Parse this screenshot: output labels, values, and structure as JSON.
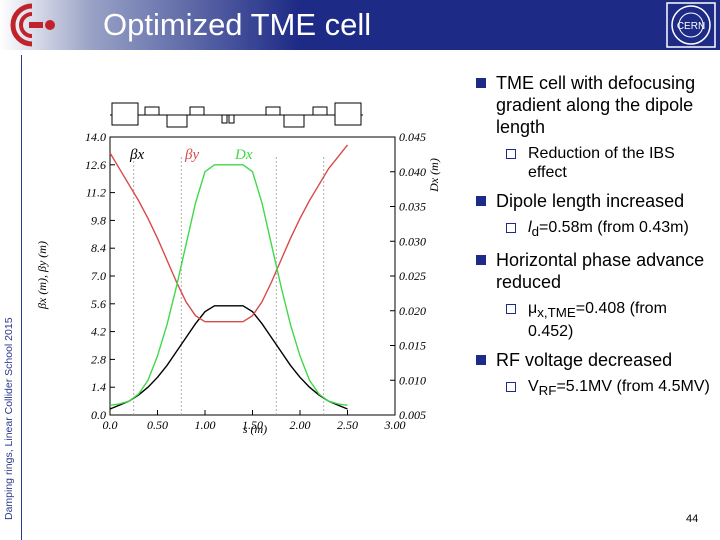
{
  "header": {
    "title": "Optimized TME cell"
  },
  "sidebar": {
    "text": "Damping rings, Linear Collider School 2015"
  },
  "bullets": {
    "b1_text": "TME cell with defocusing gradient along the dipole length",
    "b1_sub": "Reduction of the IBS effect",
    "b2_text": "Dipole length increased",
    "b2_sub_sym": "l",
    "b2_sub_subscript": "d",
    "b2_sub_rest": "=0.58m (from 0.43m)",
    "b3_text": "Horizontal phase advance reduced",
    "b3_sub_sym": "μ",
    "b3_sub_subscript": "x,TME",
    "b3_sub_rest": "=0.408 (from 0.452)",
    "b4_text": "RF voltage decreased",
    "b4_sub_sym": "V",
    "b4_sub_subscript": "RF",
    "b4_sub_rest": "=5.1MV (from 4.5MV)"
  },
  "page_number": "44",
  "chart_data": {
    "type": "line",
    "title": "",
    "xlabel": "s (m)",
    "ylabel_left": "βx (m), βy (m)",
    "ylabel_right": "Dx (m)",
    "xlim": [
      0,
      3.0
    ],
    "ylim_left": [
      0,
      14.0
    ],
    "ylim_right": [
      0.005,
      0.045
    ],
    "x_ticks": [
      "0.0",
      "0.50",
      "1.00",
      "1.50",
      "2.00",
      "2.50",
      "3.00"
    ],
    "x_tick_values": [
      0,
      0.5,
      1.0,
      1.5,
      2.0,
      2.5,
      3.0
    ],
    "y_left_ticks": [
      "0.0",
      "1.4",
      "2.8",
      "4.2",
      "5.6",
      "7.0",
      "8.4",
      "9.8",
      "11.2",
      "12.6",
      "14.0"
    ],
    "y_left_tick_values": [
      0,
      1.4,
      2.8,
      4.2,
      5.6,
      7.0,
      8.4,
      9.8,
      11.2,
      12.6,
      14.0
    ],
    "y_right_ticks": [
      "0.005",
      "0.010",
      "0.015",
      "0.020",
      "0.025",
      "0.030",
      "0.035",
      "0.040",
      "0.045"
    ],
    "y_right_tick_values": [
      0.005,
      0.01,
      0.015,
      0.02,
      0.025,
      0.03,
      0.035,
      0.04,
      0.045
    ],
    "legend": [
      "βx",
      "βy",
      "Dx"
    ],
    "colors": {
      "betax": "#000000",
      "betay": "#d94a4a",
      "dx": "#3fd94a"
    },
    "series": [
      {
        "name": "βx",
        "axis": "left",
        "x": [
          0,
          0.1,
          0.2,
          0.3,
          0.4,
          0.5,
          0.6,
          0.7,
          0.8,
          0.9,
          1.0,
          1.1,
          1.2,
          1.3,
          1.4,
          1.5,
          1.6,
          1.7,
          1.8,
          1.9,
          2.0,
          2.1,
          2.2,
          2.3,
          2.4,
          2.5
        ],
        "values": [
          0.3,
          0.5,
          0.7,
          1.0,
          1.4,
          1.9,
          2.5,
          3.2,
          3.9,
          4.6,
          5.2,
          5.5,
          5.5,
          5.5,
          5.5,
          5.2,
          4.6,
          3.9,
          3.2,
          2.5,
          1.9,
          1.4,
          1.0,
          0.7,
          0.5,
          0.3
        ]
      },
      {
        "name": "βy",
        "axis": "left",
        "x": [
          0,
          0.1,
          0.2,
          0.3,
          0.4,
          0.5,
          0.6,
          0.7,
          0.8,
          0.9,
          1.0,
          1.1,
          1.2,
          1.3,
          1.4,
          1.5,
          1.6,
          1.7,
          1.8,
          1.9,
          2.0,
          2.1,
          2.2,
          2.3,
          2.4,
          2.5
        ],
        "values": [
          13.2,
          12.4,
          11.6,
          10.8,
          9.9,
          8.9,
          7.8,
          6.7,
          5.7,
          5.0,
          4.7,
          4.7,
          4.7,
          4.7,
          4.7,
          5.0,
          5.7,
          6.7,
          7.8,
          8.9,
          9.9,
          10.8,
          11.6,
          12.4,
          13.0,
          13.6
        ]
      },
      {
        "name": "Dx",
        "axis": "right",
        "x": [
          0,
          0.1,
          0.2,
          0.3,
          0.4,
          0.5,
          0.6,
          0.7,
          0.8,
          0.9,
          1.0,
          1.1,
          1.2,
          1.3,
          1.4,
          1.5,
          1.6,
          1.7,
          1.8,
          1.9,
          2.0,
          2.1,
          2.2,
          2.3,
          2.4,
          2.5
        ],
        "values": [
          0.0064,
          0.0066,
          0.007,
          0.008,
          0.01,
          0.0135,
          0.018,
          0.0235,
          0.0295,
          0.0355,
          0.04,
          0.041,
          0.041,
          0.041,
          0.041,
          0.04,
          0.0355,
          0.0295,
          0.0235,
          0.018,
          0.0135,
          0.01,
          0.008,
          0.007,
          0.0066,
          0.0064
        ]
      }
    ]
  }
}
